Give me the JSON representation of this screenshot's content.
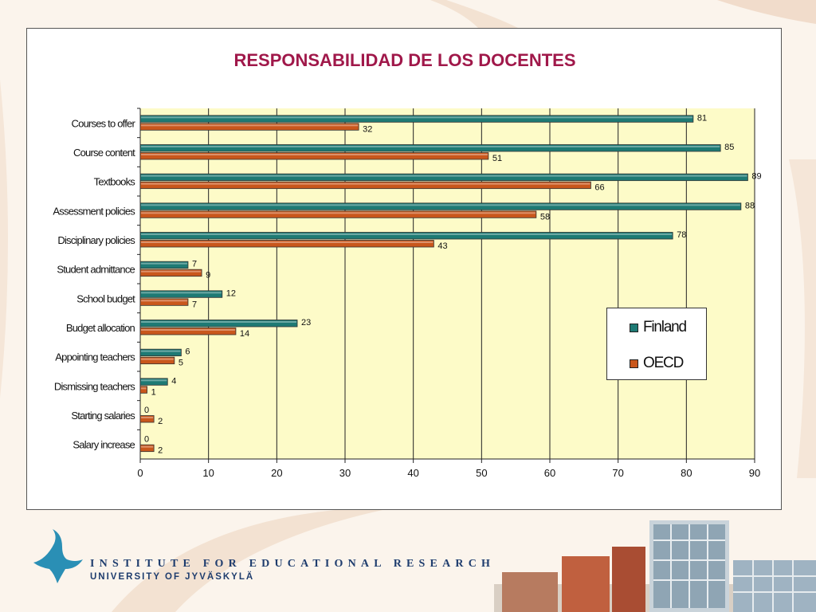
{
  "footer": {
    "institute": "INSTITUTE FOR EDUCATIONAL RESEARCH",
    "university": "UNIVERSITY OF JYVÄSKYLÄ"
  },
  "colors": {
    "finland": "#1e7a74",
    "oecd": "#c9571c",
    "plot_bg": "#fdfbc8",
    "title": "#a0184a"
  },
  "chart_data": {
    "type": "bar",
    "orientation": "horizontal",
    "title": "RESPONSABILIDAD DE LOS DOCENTES",
    "categories": [
      "Courses to offer",
      "Course content",
      "Textbooks",
      "Assessment policies",
      "Disciplinary policies",
      "Student admittance",
      "School budget",
      "Budget allocation",
      "Appointing teachers",
      "Dismissing teachers",
      "Starting salaries",
      "Salary increase"
    ],
    "series": [
      {
        "name": "Finland",
        "values": [
          81,
          85,
          89,
          88,
          78,
          7,
          12,
          23,
          6,
          4,
          0,
          0
        ]
      },
      {
        "name": "OECD",
        "values": [
          32,
          51,
          66,
          58,
          43,
          9,
          7,
          14,
          5,
          1,
          2,
          2
        ]
      }
    ],
    "xlim": [
      0,
      90
    ],
    "xticks": [
      0,
      10,
      20,
      30,
      40,
      50,
      60,
      70,
      80,
      90
    ],
    "grid": "vertical",
    "legend": "right",
    "data_labels": true
  }
}
